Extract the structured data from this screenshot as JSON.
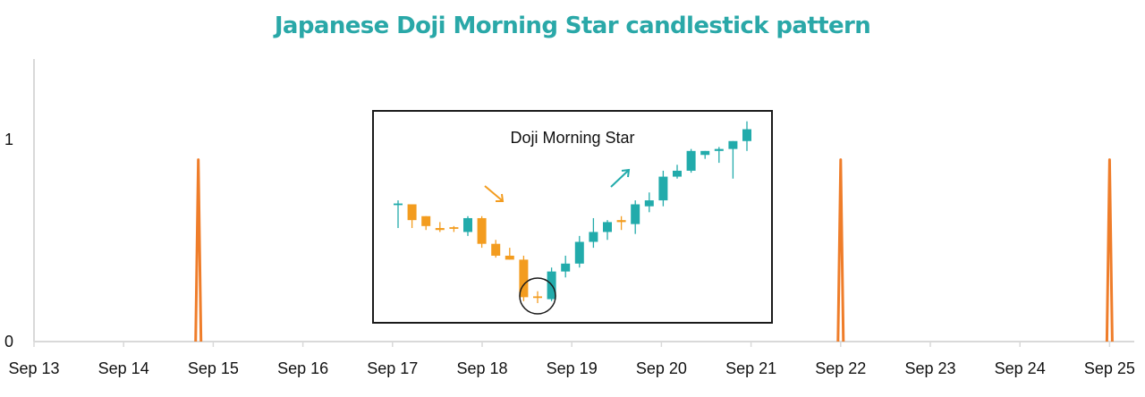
{
  "chart_data": {
    "type": "line",
    "title": "Japanese Doji Morning Star candlestick pattern",
    "xlabel": "",
    "ylabel": "",
    "categories": [
      "Sep 13",
      "Sep 14",
      "Sep 15",
      "Sep 16",
      "Sep 17",
      "Sep 18",
      "Sep 19",
      "Sep 20",
      "Sep 21",
      "Sep 22",
      "Sep 23",
      "Sep 24",
      "Sep 25"
    ],
    "yticks": [
      "0",
      "1"
    ],
    "ylim": [
      0,
      1.4
    ],
    "series": [
      {
        "color": "#ef7d2a",
        "x": [
          "Sep 14 20:00",
          "Sep 22 00:00",
          "Sep 25 00:00"
        ],
        "values": [
          0.9,
          0.9,
          0.9
        ]
      }
    ],
    "grid": false,
    "inset": {
      "label": "Doji Morning Star",
      "down_color": "#f39c1f",
      "up_color": "#22abab",
      "candles": [
        {
          "o": 0.7,
          "h": 0.72,
          "l": 0.58,
          "c": 0.7
        },
        {
          "o": 0.7,
          "h": 0.7,
          "l": 0.58,
          "c": 0.62
        },
        {
          "o": 0.64,
          "h": 0.64,
          "l": 0.57,
          "c": 0.59
        },
        {
          "o": 0.58,
          "h": 0.61,
          "l": 0.56,
          "c": 0.57
        },
        {
          "o": 0.58,
          "h": 0.59,
          "l": 0.56,
          "c": 0.58
        },
        {
          "o": 0.56,
          "h": 0.64,
          "l": 0.54,
          "c": 0.63
        },
        {
          "o": 0.63,
          "h": 0.64,
          "l": 0.48,
          "c": 0.5
        },
        {
          "o": 0.5,
          "h": 0.52,
          "l": 0.43,
          "c": 0.44
        },
        {
          "o": 0.44,
          "h": 0.48,
          "l": 0.42,
          "c": 0.42
        },
        {
          "o": 0.42,
          "h": 0.44,
          "l": 0.21,
          "c": 0.23
        },
        {
          "o": 0.23,
          "h": 0.26,
          "l": 0.2,
          "c": 0.23
        },
        {
          "o": 0.22,
          "h": 0.38,
          "l": 0.21,
          "c": 0.36
        },
        {
          "o": 0.36,
          "h": 0.44,
          "l": 0.33,
          "c": 0.4
        },
        {
          "o": 0.4,
          "h": 0.54,
          "l": 0.38,
          "c": 0.51
        },
        {
          "o": 0.51,
          "h": 0.63,
          "l": 0.48,
          "c": 0.56
        },
        {
          "o": 0.56,
          "h": 0.62,
          "l": 0.52,
          "c": 0.61
        },
        {
          "o": 0.62,
          "h": 0.64,
          "l": 0.57,
          "c": 0.61
        },
        {
          "o": 0.6,
          "h": 0.72,
          "l": 0.55,
          "c": 0.7
        },
        {
          "o": 0.69,
          "h": 0.76,
          "l": 0.66,
          "c": 0.72
        },
        {
          "o": 0.72,
          "h": 0.87,
          "l": 0.69,
          "c": 0.84
        },
        {
          "o": 0.84,
          "h": 0.9,
          "l": 0.83,
          "c": 0.87
        },
        {
          "o": 0.87,
          "h": 0.98,
          "l": 0.86,
          "c": 0.97
        },
        {
          "o": 0.95,
          "h": 0.97,
          "l": 0.93,
          "c": 0.97
        },
        {
          "o": 0.97,
          "h": 0.99,
          "l": 0.91,
          "c": 0.98
        },
        {
          "o": 0.98,
          "h": 1.02,
          "l": 0.83,
          "c": 1.02
        },
        {
          "o": 1.02,
          "h": 1.12,
          "l": 0.97,
          "c": 1.08
        }
      ]
    }
  }
}
